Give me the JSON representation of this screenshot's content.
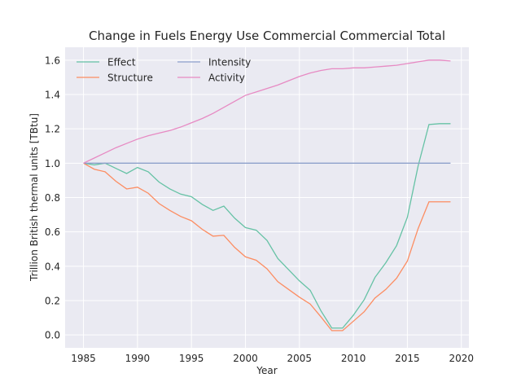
{
  "chart_data": {
    "type": "line",
    "title": "Change in Fuels Energy Use Commercial Commercial Total",
    "xlabel": "Year",
    "ylabel": "Trillion British thermal units [TBtu]",
    "xlim": [
      1983.3,
      2020.7
    ],
    "ylim": [
      -0.075,
      1.675
    ],
    "xticks": [
      "1985",
      "1990",
      "1995",
      "2000",
      "2005",
      "2010",
      "2015",
      "2020"
    ],
    "yticks": [
      "0.0",
      "0.2",
      "0.4",
      "0.6",
      "0.8",
      "1.0",
      "1.2",
      "1.4",
      "1.6"
    ],
    "grid": true,
    "legend_position": "top-left",
    "x": [
      1985,
      1986,
      1987,
      1988,
      1989,
      1990,
      1991,
      1992,
      1993,
      1994,
      1995,
      1996,
      1997,
      1998,
      1999,
      2000,
      2001,
      2002,
      2003,
      2004,
      2005,
      2006,
      2007,
      2008,
      2009,
      2010,
      2011,
      2012,
      2013,
      2014,
      2015,
      2016,
      2017,
      2018,
      2019
    ],
    "series": [
      {
        "name": "Effect",
        "color": "#66c2a5",
        "values": [
          1.0,
          0.99,
          1.0,
          0.97,
          0.94,
          0.975,
          0.95,
          0.89,
          0.85,
          0.82,
          0.805,
          0.76,
          0.725,
          0.75,
          0.68,
          0.625,
          0.61,
          0.55,
          0.445,
          0.38,
          0.315,
          0.26,
          0.14,
          0.04,
          0.04,
          0.115,
          0.205,
          0.335,
          0.42,
          0.52,
          0.685,
          0.985,
          1.225,
          1.23,
          1.23
        ]
      },
      {
        "name": "Structure",
        "color": "#fc8d62",
        "values": [
          1.0,
          0.965,
          0.95,
          0.895,
          0.85,
          0.86,
          0.825,
          0.765,
          0.725,
          0.69,
          0.665,
          0.615,
          0.575,
          0.58,
          0.51,
          0.455,
          0.435,
          0.385,
          0.31,
          0.265,
          0.22,
          0.18,
          0.105,
          0.025,
          0.025,
          0.08,
          0.135,
          0.215,
          0.265,
          0.33,
          0.43,
          0.62,
          0.775,
          0.775,
          0.775
        ]
      },
      {
        "name": "Intensity",
        "color": "#8da0cb",
        "values": [
          1.0,
          1.0,
          1.0,
          1.0,
          1.0,
          1.0,
          1.0,
          1.0,
          1.0,
          1.0,
          1.0,
          1.0,
          1.0,
          1.0,
          1.0,
          1.0,
          1.0,
          1.0,
          1.0,
          1.0,
          1.0,
          1.0,
          1.0,
          1.0,
          1.0,
          1.0,
          1.0,
          1.0,
          1.0,
          1.0,
          1.0,
          1.0,
          1.0,
          1.0,
          1.0
        ]
      },
      {
        "name": "Activity",
        "color": "#e78ac3",
        "values": [
          1.0,
          1.03,
          1.06,
          1.09,
          1.115,
          1.14,
          1.16,
          1.175,
          1.19,
          1.21,
          1.235,
          1.26,
          1.29,
          1.325,
          1.36,
          1.395,
          1.415,
          1.435,
          1.455,
          1.48,
          1.505,
          1.525,
          1.54,
          1.55,
          1.55,
          1.555,
          1.555,
          1.56,
          1.565,
          1.57,
          1.58,
          1.59,
          1.6,
          1.6,
          1.595
        ]
      }
    ]
  }
}
